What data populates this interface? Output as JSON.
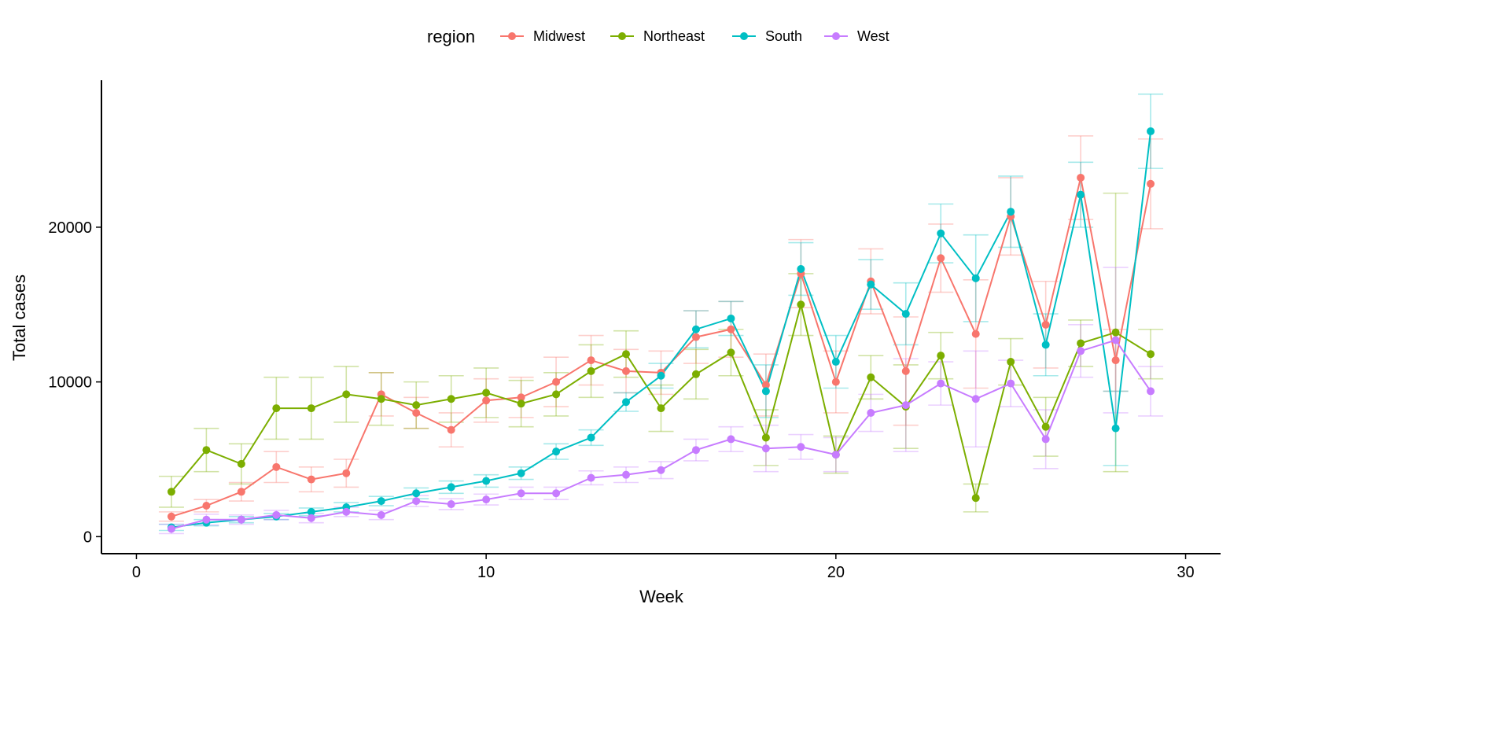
{
  "chart_data": {
    "type": "line",
    "title": "",
    "xlabel": "Week",
    "ylabel": "Total cases",
    "xlim": [
      -1,
      31
    ],
    "ylim": [
      -1100,
      29500
    ],
    "x_ticks": [
      0,
      10,
      20,
      30
    ],
    "y_ticks": [
      0,
      10000,
      20000
    ],
    "grid": false,
    "legend": {
      "title": "region",
      "position": "top"
    },
    "x": [
      1,
      2,
      3,
      4,
      5,
      6,
      7,
      8,
      9,
      10,
      11,
      12,
      13,
      14,
      15,
      16,
      17,
      18,
      19,
      20,
      21,
      22,
      23,
      24,
      25,
      26,
      27,
      28,
      29
    ],
    "series": [
      {
        "name": "Midwest",
        "color": "#F8766D",
        "values": [
          1300,
          2000,
          2900,
          4500,
          3700,
          4100,
          9200,
          8000,
          6900,
          8800,
          9000,
          10000,
          11400,
          10700,
          10600,
          12900,
          13400,
          9800,
          17000,
          10000,
          16500,
          10700,
          18000,
          13100,
          20700,
          13700,
          23200,
          11400,
          22800
        ],
        "err": [
          300,
          400,
          600,
          1000,
          800,
          900,
          1400,
          1000,
          1100,
          1400,
          1300,
          1600,
          1600,
          1400,
          1400,
          1700,
          1800,
          2000,
          2200,
          2000,
          2100,
          3500,
          2200,
          3500,
          2500,
          2800,
          2700,
          2000,
          2900
        ]
      },
      {
        "name": "Northeast",
        "color": "#7CAE00",
        "values": [
          2900,
          5600,
          4700,
          8300,
          8300,
          9200,
          8900,
          8500,
          8900,
          9300,
          8600,
          9200,
          10700,
          11800,
          8300,
          10500,
          11900,
          6400,
          15000,
          5300,
          10300,
          8400,
          11700,
          2500,
          11300,
          7100,
          12500,
          13200,
          11800
        ],
        "err": [
          1000,
          1400,
          1300,
          2000,
          2000,
          1800,
          1700,
          1500,
          1500,
          1600,
          1500,
          1400,
          1700,
          1500,
          1500,
          1600,
          1500,
          1800,
          2000,
          1200,
          1400,
          2700,
          1500,
          900,
          1500,
          1900,
          1500,
          9000,
          1600
        ]
      },
      {
        "name": "South",
        "color": "#00BFC4",
        "values": [
          600,
          900,
          1100,
          1300,
          1600,
          1900,
          2300,
          2800,
          3200,
          3600,
          4100,
          5500,
          6400,
          8700,
          10400,
          13400,
          14100,
          9400,
          17300,
          11300,
          16300,
          14400,
          19600,
          16700,
          21000,
          12400,
          22100,
          7000,
          26200
        ],
        "err": [
          200,
          200,
          200,
          200,
          250,
          300,
          300,
          350,
          400,
          400,
          400,
          500,
          500,
          600,
          800,
          1200,
          1100,
          1700,
          1700,
          1700,
          1600,
          2000,
          1900,
          2800,
          2300,
          2000,
          2100,
          2400,
          2400
        ]
      },
      {
        "name": "West",
        "color": "#C77CFF",
        "values": [
          500,
          1100,
          1100,
          1400,
          1200,
          1600,
          1400,
          2300,
          2100,
          2400,
          2800,
          2800,
          3800,
          4000,
          4300,
          5600,
          6300,
          5700,
          5800,
          5300,
          8000,
          8500,
          9900,
          8900,
          9900,
          6300,
          12000,
          12700,
          9400
        ],
        "err": [
          300,
          350,
          300,
          300,
          300,
          300,
          300,
          350,
          350,
          350,
          400,
          400,
          450,
          500,
          550,
          700,
          800,
          1500,
          800,
          1100,
          1200,
          3000,
          1400,
          3100,
          1500,
          1900,
          1700,
          4700,
          1600
        ]
      }
    ]
  }
}
